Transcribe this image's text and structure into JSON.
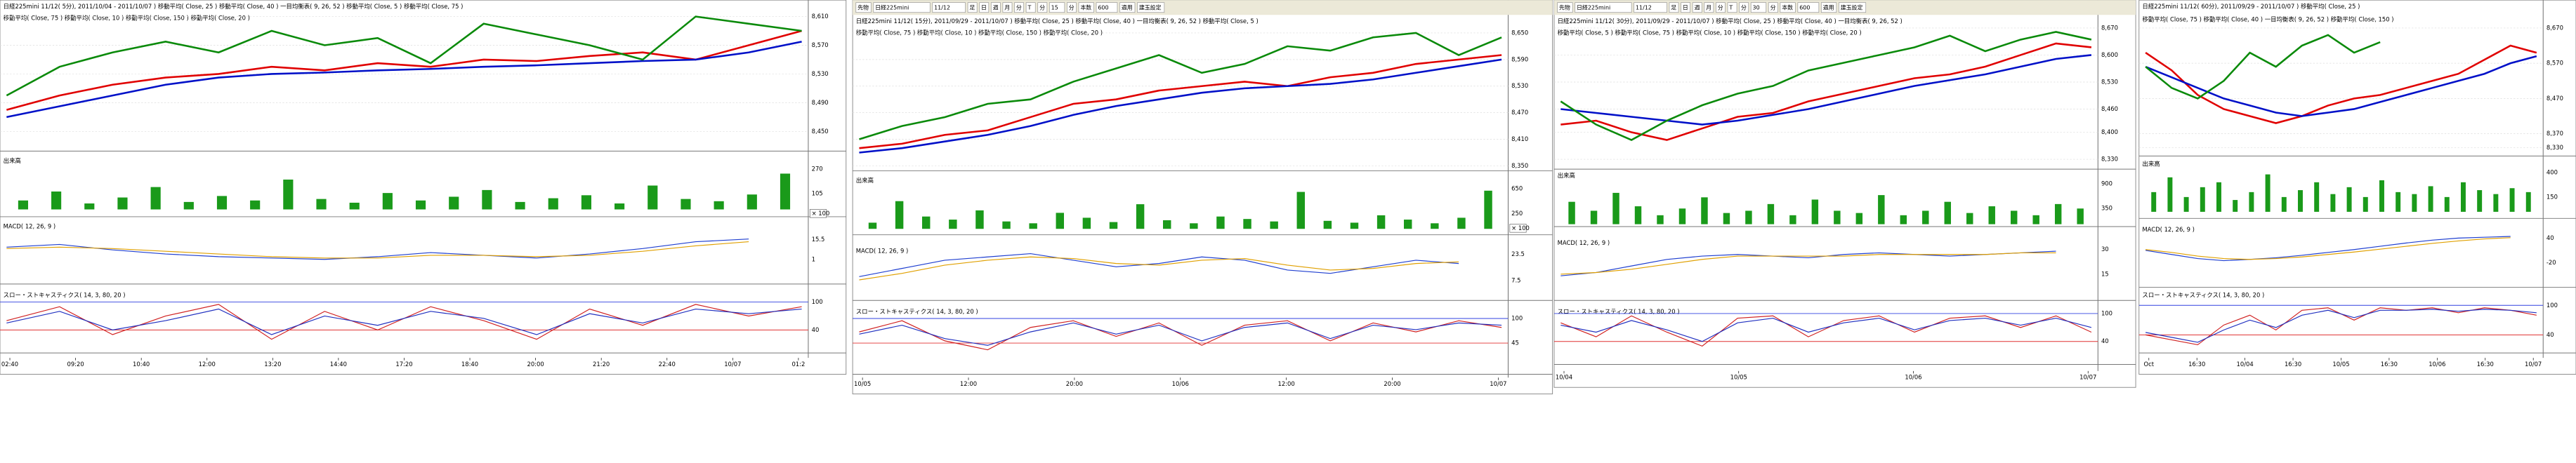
{
  "panels": [
    {
      "header": [
        "日経225mini 11/12( 5分), 2011/10/04 - 2011/10/07 )   移動平均( Close, 25 )   移動平均( Close, 40 )   一目均衡表( 9, 26, 52 )   移動平均( Close, 5 )   移動平均( Close, 75 )",
        "移動平均( Close, 75 )   移動平均( Close, 10 )   移動平均( Close, 150 )   移動平均( Close, 20 )"
      ],
      "price": {
        "ticks": [
          {
            "value": 8610,
            "label": "8,610"
          },
          {
            "value": 8570,
            "label": "8,570"
          },
          {
            "value": 8530,
            "label": "8,530"
          },
          {
            "value": 8490,
            "label": "8,490"
          },
          {
            "value": 8450,
            "label": "8,450"
          }
        ],
        "lines": [
          {
            "color": "#e00000",
            "values": [
              8480,
              8500,
              8515,
              8525,
              8530,
              8540,
              8535,
              8545,
              8540,
              8550,
              8548,
              8555,
              8560,
              8550,
              8570,
              8590
            ]
          },
          {
            "color": "#0010c8",
            "values": [
              8470,
              8485,
              8500,
              8515,
              8525,
              8530,
              8532,
              8535,
              8537,
              8540,
              8542,
              8545,
              8548,
              8550,
              8560,
              8575
            ]
          },
          {
            "color": "#0a8a0a",
            "values": [
              8500,
              8540,
              8560,
              8575,
              8560,
              8590,
              8570,
              8580,
              8545,
              8600,
              8585,
              8570,
              8550,
              8610,
              8600,
              8590
            ]
          }
        ]
      },
      "volume": {
        "label": "出来高",
        "unit": "× 100",
        "color": "#1a9a1a",
        "ticks": [
          270,
          105
        ],
        "values": [
          60,
          120,
          40,
          80,
          150,
          50,
          90,
          60,
          200,
          70,
          45,
          110,
          60,
          85,
          130,
          50,
          75,
          95,
          40,
          160,
          70,
          55,
          100,
          240
        ]
      },
      "macd": {
        "label": "MACD( 12, 26, 9 )",
        "ticks": [
          15.5,
          1
        ],
        "lines": [
          {
            "color": "#1f3fd0",
            "values": [
              10,
              12,
              8,
              5,
              3,
              2,
              1,
              3,
              6,
              4,
              2,
              5,
              9,
              14,
              16
            ]
          },
          {
            "color": "#e0a000",
            "values": [
              9,
              10,
              9,
              7,
              5,
              3,
              2,
              2,
              4,
              4,
              3,
              4,
              7,
              11,
              14
            ]
          }
        ]
      },
      "stoch": {
        "label": "スロー・ストキャスティクス( 14, 3, 80, 20 )",
        "ticks": [
          100,
          40
        ],
        "lines": [
          {
            "color": "#d02020",
            "values": [
              60,
              90,
              30,
              70,
              95,
              20,
              80,
              40,
              90,
              60,
              20,
              85,
              50,
              95,
              70,
              90
            ]
          },
          {
            "color": "#2030c0",
            "values": [
              55,
              80,
              40,
              60,
              85,
              30,
              70,
              50,
              80,
              65,
              30,
              75,
              55,
              85,
              75,
              85
            ]
          }
        ]
      },
      "times": [
        "02:40",
        "09:20",
        "10:40",
        "12:00",
        "13:20",
        "14:40",
        "17:20",
        "18:40",
        "20:00",
        "21:20",
        "22:40",
        "10/07",
        "01:2"
      ]
    },
    {
      "toolbar": [
        "先物",
        "日経225mini",
        "11/12",
        "足",
        "日",
        "週",
        "月",
        "分",
        "T",
        "分",
        "15",
        "分",
        "本数",
        "600",
        "適用",
        "建玉設定"
      ],
      "header": [
        "日経225mini 11/12( 15分), 2011/09/29 - 2011/10/07 )   移動平均( Close, 25 )   移動平均( Close, 40 )   一目均衡表( 9, 26, 52 )   移動平均( Close, 5 )",
        "移動平均( Close, 75 )   移動平均( Close, 10 )   移動平均( Close, 150 )   移動平均( Close, 20 )"
      ],
      "price": {
        "ticks": [
          {
            "value": 8650,
            "label": "8,650"
          },
          {
            "value": 8590,
            "label": "8,590"
          },
          {
            "value": 8530,
            "label": "8,530"
          },
          {
            "value": 8470,
            "label": "8,470"
          },
          {
            "value": 8410,
            "label": "8,410"
          },
          {
            "value": 8350,
            "label": "8,350"
          }
        ],
        "lines": [
          {
            "color": "#e00000",
            "values": [
              8390,
              8400,
              8420,
              8430,
              8460,
              8490,
              8500,
              8520,
              8530,
              8540,
              8530,
              8550,
              8560,
              8580,
              8590,
              8600
            ]
          },
          {
            "color": "#0010c8",
            "values": [
              8380,
              8390,
              8405,
              8420,
              8440,
              8465,
              8485,
              8500,
              8515,
              8525,
              8530,
              8535,
              8545,
              8560,
              8575,
              8590
            ]
          },
          {
            "color": "#0a8a0a",
            "values": [
              8410,
              8440,
              8460,
              8490,
              8500,
              8540,
              8570,
              8600,
              8560,
              8580,
              8620,
              8610,
              8640,
              8650,
              8600,
              8640
            ]
          }
        ]
      },
      "volume": {
        "label": "出来高",
        "unit": "× 100",
        "color": "#1a9a1a",
        "ticks": [
          650,
          250
        ],
        "values": [
          100,
          450,
          200,
          150,
          300,
          120,
          90,
          260,
          180,
          110,
          400,
          140,
          90,
          200,
          160,
          120,
          600,
          130,
          100,
          220,
          150,
          90,
          180,
          620
        ]
      },
      "macd": {
        "label": "MACD( 12, 26, 9 )",
        "ticks": [
          23.5,
          7.5
        ],
        "lines": [
          {
            "color": "#1f3fd0",
            "values": [
              10,
              15,
              20,
              22,
              24,
              20,
              16,
              18,
              22,
              20,
              14,
              12,
              16,
              20,
              18
            ]
          },
          {
            "color": "#e0a000",
            "values": [
              8,
              12,
              17,
              20,
              22,
              21,
              18,
              17,
              20,
              21,
              17,
              14,
              15,
              18,
              19
            ]
          }
        ]
      },
      "stoch": {
        "label": "スロー・ストキャスティクス( 14, 3, 80, 20 )",
        "ticks": [
          100,
          45
        ],
        "lines": [
          {
            "color": "#d02020",
            "values": [
              70,
              95,
              50,
              30,
              80,
              95,
              60,
              90,
              40,
              85,
              95,
              50,
              90,
              70,
              95,
              80
            ]
          },
          {
            "color": "#2030c0",
            "values": [
              65,
              85,
              55,
              40,
              70,
              90,
              65,
              85,
              50,
              80,
              90,
              55,
              85,
              75,
              90,
              85
            ]
          }
        ]
      },
      "times": [
        "10/05",
        "12:00",
        "20:00",
        "10/06",
        "12:00",
        "20:00",
        "10/07"
      ]
    },
    {
      "toolbar": [
        "先物",
        "日経225mini",
        "11/12",
        "足",
        "日",
        "週",
        "月",
        "分",
        "T",
        "分",
        "30",
        "分",
        "本数",
        "600",
        "適用",
        "建玉設定"
      ],
      "header": [
        "日経225mini 11/12( 30分), 2011/09/29 - 2011/10/07 )   移動平均( Close, 25 )   移動平均( Close, 40 )   一目均衡表( 9, 26, 52 )",
        "移動平均( Close, 5 )   移動平均( Close, 75 )   移動平均( Close, 10 )   移動平均( Close, 150 )   移動平均( Close, 20 )"
      ],
      "price": {
        "ticks": [
          {
            "value": 8670,
            "label": "8,670"
          },
          {
            "value": 8600,
            "label": "8,600"
          },
          {
            "value": 8530,
            "label": "8,530"
          },
          {
            "value": 8460,
            "label": "8,460"
          },
          {
            "value": 8400,
            "label": "8,400"
          },
          {
            "value": 8330,
            "label": "8,330"
          }
        ],
        "lines": [
          {
            "color": "#e00000",
            "values": [
              8420,
              8430,
              8400,
              8380,
              8410,
              8440,
              8450,
              8480,
              8500,
              8520,
              8540,
              8550,
              8570,
              8600,
              8630,
              8620
            ]
          },
          {
            "color": "#0010c8",
            "values": [
              8460,
              8450,
              8440,
              8430,
              8420,
              8430,
              8445,
              8460,
              8480,
              8500,
              8520,
              8535,
              8550,
              8570,
              8590,
              8600
            ]
          },
          {
            "color": "#0a8a0a",
            "values": [
              8480,
              8420,
              8380,
              8430,
              8470,
              8500,
              8520,
              8560,
              8580,
              8600,
              8620,
              8650,
              8610,
              8640,
              8660,
              8640
            ]
          }
        ]
      },
      "volume": {
        "label": "出来高",
        "color": "#1a9a1a",
        "ticks": [
          900,
          350
        ],
        "values": [
          500,
          300,
          700,
          400,
          200,
          350,
          600,
          250,
          300,
          450,
          200,
          550,
          300,
          250,
          650,
          200,
          300,
          500,
          250,
          400,
          300,
          200,
          450,
          350
        ]
      },
      "macd": {
        "label": "MACD( 12, 26, 9 )",
        "ticks": [
          30,
          15
        ],
        "lines": [
          {
            "color": "#1f3fd0",
            "values": [
              14,
              16,
              20,
              24,
              26,
              27,
              26,
              25,
              27,
              28,
              27,
              26,
              27,
              28,
              29
            ]
          },
          {
            "color": "#e0a000",
            "values": [
              15,
              16,
              18,
              21,
              24,
              26,
              26,
              26,
              26,
              27,
              27,
              27,
              27,
              28,
              28
            ]
          }
        ]
      },
      "stoch": {
        "label": "スロー・ストキャスティクス( 14, 3, 80, 20 )",
        "ticks": [
          100,
          40
        ],
        "lines": [
          {
            "color": "#d02020",
            "values": [
              80,
              50,
              95,
              60,
              30,
              90,
              95,
              50,
              85,
              95,
              60,
              90,
              95,
              70,
              95,
              60
            ]
          },
          {
            "color": "#2030c0",
            "values": [
              75,
              60,
              85,
              65,
              40,
              80,
              90,
              60,
              80,
              90,
              65,
              85,
              90,
              75,
              90,
              70
            ]
          }
        ]
      },
      "times": [
        "10/04",
        "10/05",
        "10/06",
        "10/07"
      ]
    },
    {
      "header": [
        "日経225mini 11/12( 60分), 2011/09/29 - 2011/10/07 )   移動平均( Close, 25 )",
        "移動平均( Close, 75 )   移動平均( Close, 40 )   一目均衡表( 9, 26, 52 )   移動平均( Close, 150 )"
      ],
      "price": {
        "ticks": [
          {
            "value": 8670,
            "label": "8,670"
          },
          {
            "value": 8570,
            "label": "8,570"
          },
          {
            "value": 8470,
            "label": "8,470"
          },
          {
            "value": 8370,
            "label": "8,370"
          },
          {
            "value": 8330,
            "label": "8,330"
          }
        ],
        "lines": [
          {
            "color": "#e00000",
            "values": [
              8600,
              8550,
              8480,
              8440,
              8420,
              8400,
              8420,
              8450,
              8470,
              8480,
              8500,
              8520,
              8540,
              8580,
              8620,
              8600
            ]
          },
          {
            "color": "#0010c8",
            "values": [
              8560,
              8530,
              8500,
              8470,
              8450,
              8430,
              8420,
              8430,
              8440,
              8460,
              8480,
              8500,
              8520,
              8540,
              8570,
              8590
            ]
          },
          {
            "color": "#0a8a0a",
            "values": [
              8560,
              8500,
              8470,
              8520,
              8600,
              8560,
              8620,
              8650,
              8600,
              8630
            ]
          }
        ]
      },
      "volume": {
        "label": "出来高",
        "color": "#1a9a1a",
        "ticks": [
          400,
          150
        ],
        "values": [
          200,
          350,
          150,
          250,
          300,
          120,
          200,
          380,
          150,
          220,
          300,
          180,
          250,
          150,
          320,
          200,
          180,
          260,
          150,
          300,
          220,
          180,
          240,
          200
        ]
      },
      "macd": {
        "label": "MACD( 12, 26, 9 )",
        "ticks": [
          40,
          -20
        ],
        "lines": [
          {
            "color": "#1f3fd0",
            "values": [
              10,
              0,
              -10,
              -15,
              -12,
              -8,
              -2,
              5,
              12,
              20,
              28,
              35,
              40,
              42,
              44
            ]
          },
          {
            "color": "#e0a000",
            "values": [
              12,
              5,
              -4,
              -10,
              -12,
              -10,
              -6,
              0,
              6,
              13,
              20,
              27,
              33,
              38,
              41
            ]
          }
        ]
      },
      "stoch": {
        "label": "スロー・ストキャスティクス( 14, 3, 80, 20 )",
        "ticks": [
          100,
          40
        ],
        "lines": [
          {
            "color": "#d02020",
            "values": [
              40,
              30,
              20,
              60,
              80,
              50,
              90,
              95,
              70,
              95,
              90,
              95,
              85,
              95,
              90,
              80
            ]
          },
          {
            "color": "#2030c0",
            "values": [
              45,
              35,
              25,
              50,
              70,
              55,
              80,
              90,
              75,
              90,
              90,
              92,
              88,
              92,
              90,
              85
            ]
          }
        ]
      },
      "times": [
        "Oct",
        "16:30",
        "10/04",
        "16:30",
        "10/05",
        "16:30",
        "10/06",
        "16:30",
        "10/07"
      ]
    }
  ]
}
